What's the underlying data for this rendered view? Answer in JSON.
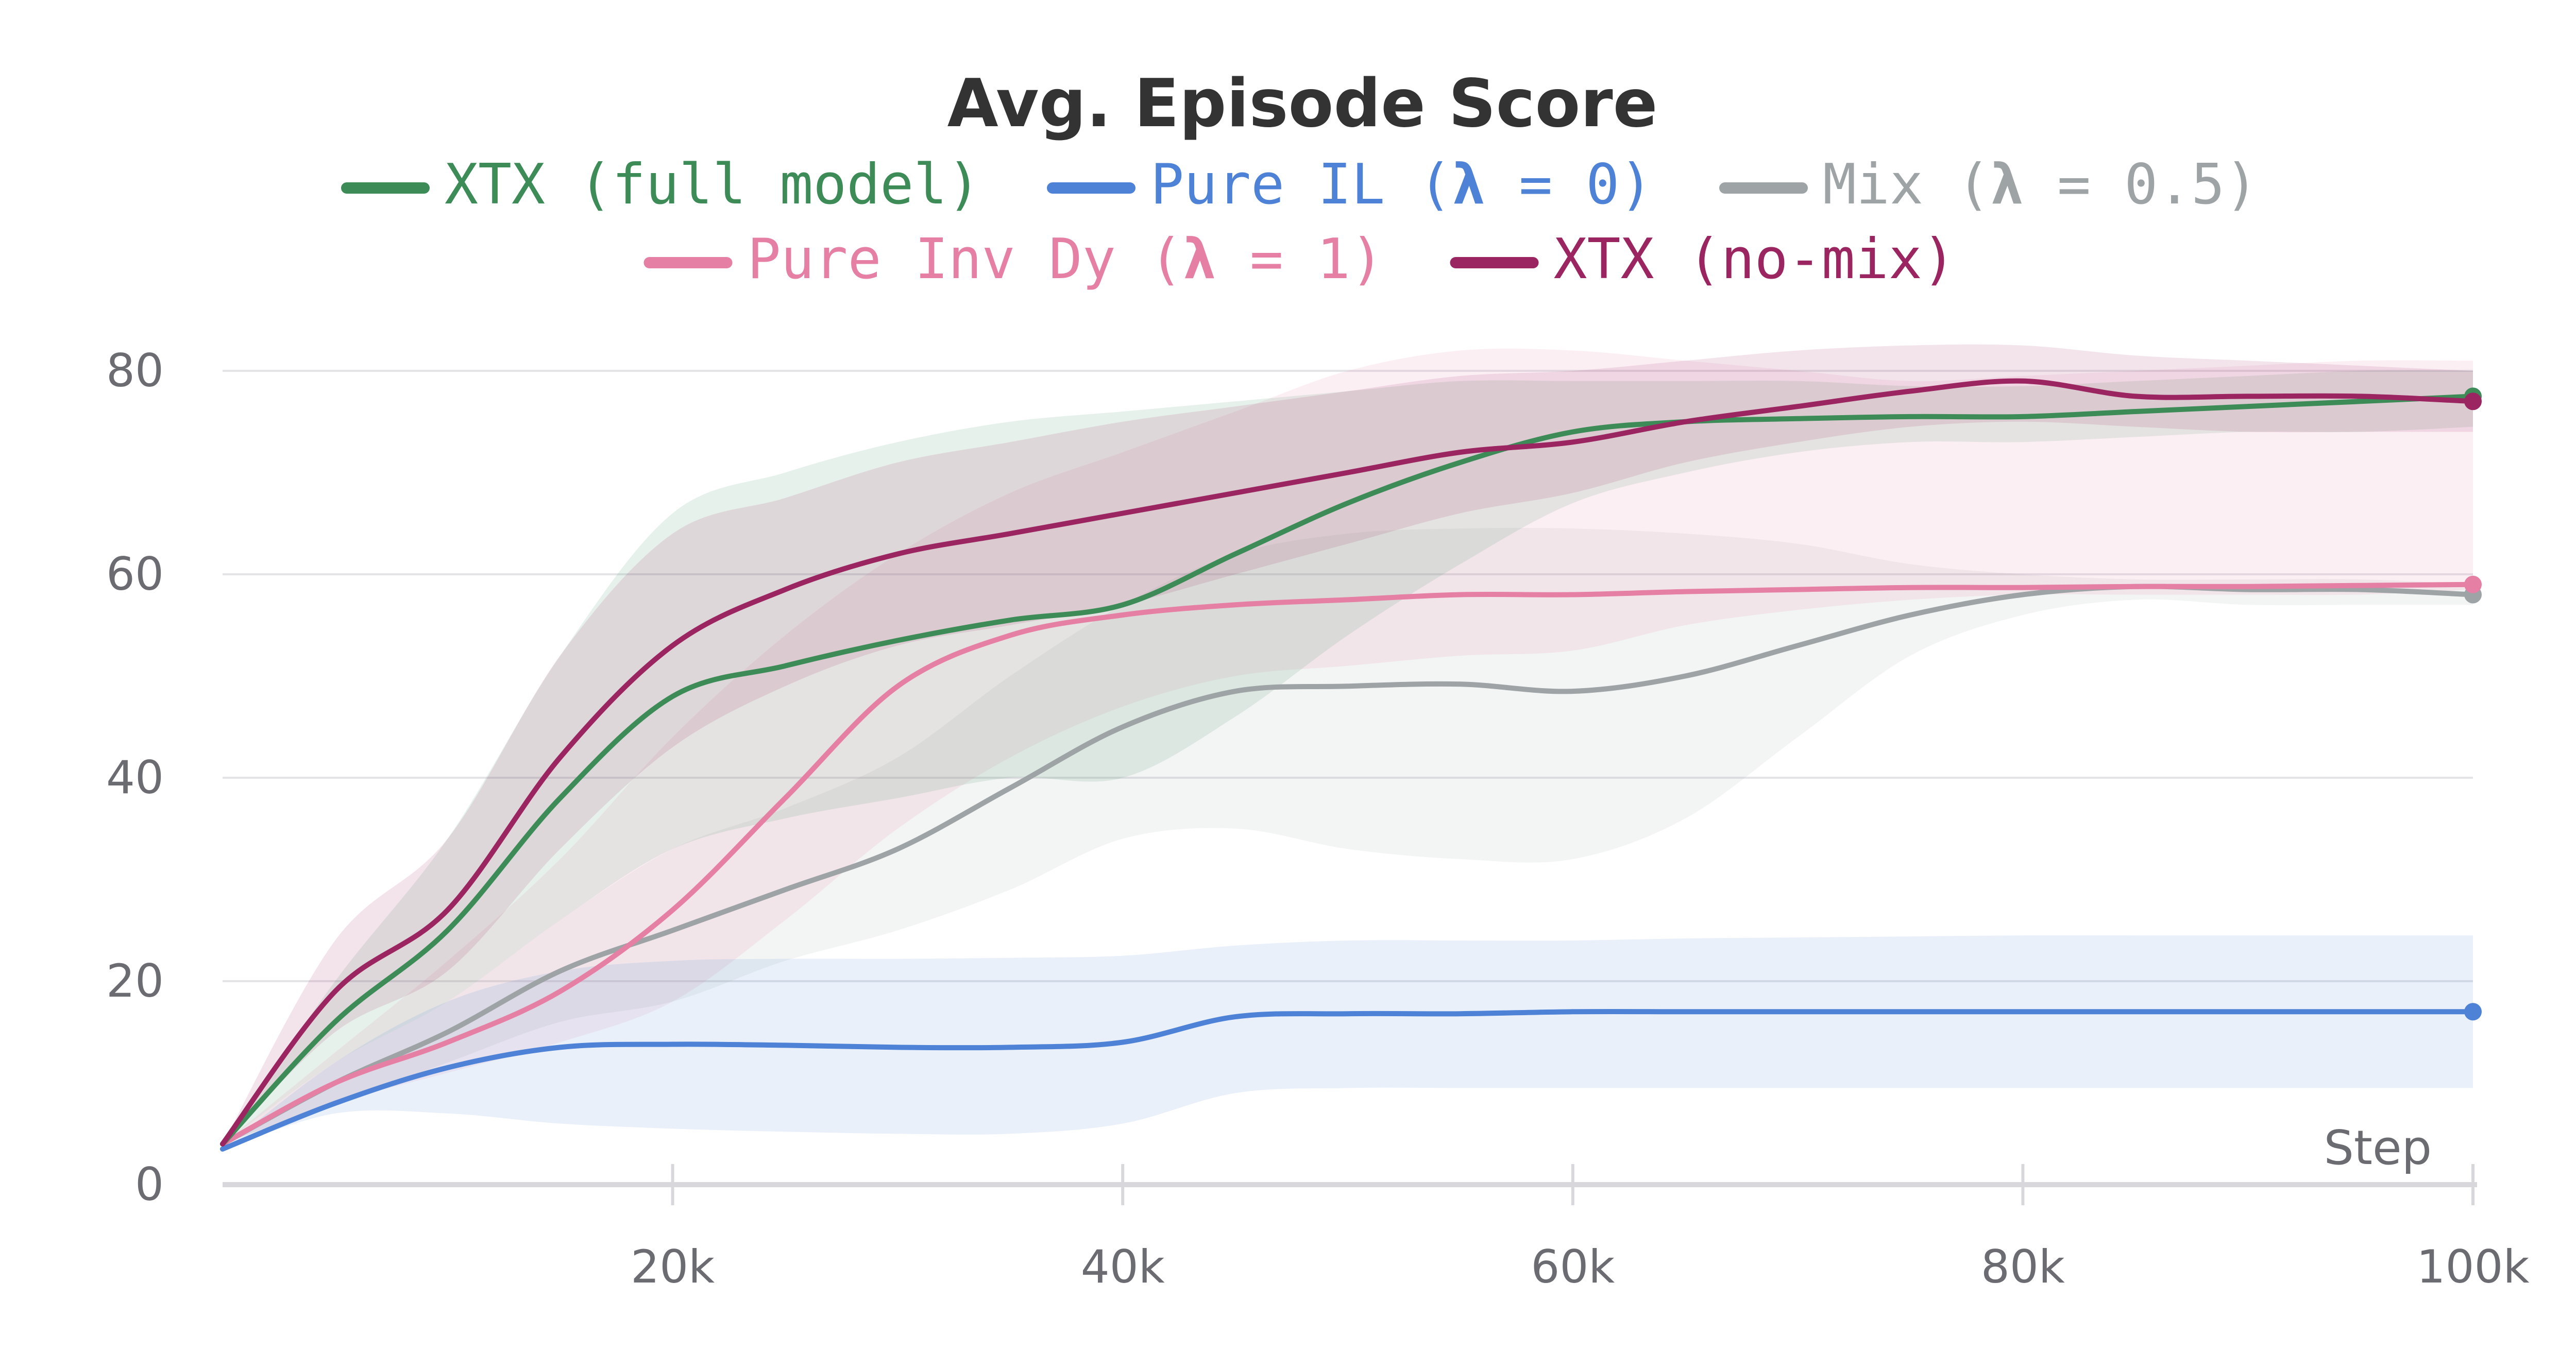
{
  "chart_data": {
    "type": "line",
    "title": "Avg. Episode Score",
    "xlabel": "Step",
    "ylabel": "",
    "xlim": [
      0,
      100000
    ],
    "ylim": [
      0,
      80
    ],
    "x_ticks": [
      20000,
      40000,
      60000,
      80000,
      100000
    ],
    "x_tick_labels": [
      "20k",
      "40k",
      "60k",
      "80k",
      "100k"
    ],
    "y_ticks": [
      0,
      20,
      40,
      60,
      80
    ],
    "y_tick_labels": [
      "0",
      "20",
      "40",
      "60",
      "80"
    ],
    "legend_position": "top",
    "series": [
      {
        "name": "Mix",
        "label": "Mix (λ = 0.5)",
        "label_parts": [
          "Mix (",
          "λ",
          " = 0.5)"
        ],
        "color": "#9ea3a6",
        "x": [
          0,
          5000,
          10000,
          15000,
          20000,
          25000,
          30000,
          35000,
          40000,
          45000,
          50000,
          55000,
          60000,
          65000,
          70000,
          75000,
          80000,
          85000,
          90000,
          95000,
          100000
        ],
        "y": [
          4,
          10,
          15,
          21,
          25,
          29,
          33,
          39,
          45,
          48.5,
          49,
          49.2,
          48.5,
          50,
          53,
          56,
          58,
          58.8,
          58.5,
          58.5,
          58
        ],
        "lower": [
          4,
          8,
          12,
          16,
          18,
          22,
          25,
          29,
          34,
          35,
          33,
          32,
          32,
          36,
          44,
          52,
          56,
          57.5,
          57,
          57,
          57
        ],
        "upper": [
          4,
          12,
          18,
          26,
          33,
          37,
          42,
          50,
          57,
          62,
          64,
          64.5,
          64.5,
          64,
          63,
          61,
          60,
          59.5,
          59.5,
          59.5,
          59
        ]
      },
      {
        "name": "Pure Inv Dy",
        "label": "Pure Inv Dy (λ = 1)",
        "label_parts": [
          "Pure Inv Dy (",
          "λ",
          " = 1)"
        ],
        "color": "#e57fa3",
        "x": [
          0,
          5000,
          10000,
          15000,
          20000,
          25000,
          30000,
          35000,
          40000,
          45000,
          50000,
          55000,
          60000,
          65000,
          70000,
          75000,
          80000,
          85000,
          90000,
          95000,
          100000
        ],
        "y": [
          4,
          10,
          14,
          19,
          27,
          38,
          49,
          54,
          56,
          57,
          57.5,
          58,
          58,
          58.3,
          58.5,
          58.7,
          58.7,
          58.8,
          58.8,
          58.9,
          59
        ],
        "lower": [
          4,
          8,
          11,
          14,
          18,
          26,
          35,
          42,
          47,
          50,
          51,
          52,
          52.5,
          55,
          56.5,
          57.5,
          58,
          58,
          58,
          58,
          58.5
        ],
        "upper": [
          4,
          13,
          22,
          32,
          44,
          54,
          62,
          68,
          72,
          76,
          80,
          82,
          82,
          81,
          80,
          79,
          79.5,
          80,
          80.5,
          81,
          81
        ]
      },
      {
        "name": "XTX (full model)",
        "label": "XTX (full model)",
        "label_parts": [
          "XTX (full model)"
        ],
        "color": "#3d8c58",
        "x": [
          0,
          5000,
          10000,
          15000,
          20000,
          25000,
          30000,
          35000,
          40000,
          45000,
          50000,
          55000,
          60000,
          65000,
          70000,
          75000,
          80000,
          85000,
          90000,
          95000,
          100000
        ],
        "y": [
          4,
          16,
          25,
          38,
          48,
          51,
          53.5,
          55.5,
          57,
          62,
          67,
          71,
          74,
          75,
          75.3,
          75.5,
          75.5,
          76,
          76.5,
          77,
          77.5
        ],
        "lower": [
          4,
          12,
          18,
          26,
          33,
          36,
          38,
          40,
          40,
          46,
          54,
          61,
          67,
          70,
          72,
          73,
          73,
          73.5,
          74,
          74,
          74.5
        ],
        "upper": [
          4,
          20,
          34,
          52,
          66,
          70,
          73,
          75,
          76,
          77,
          78,
          79,
          79,
          79,
          79,
          78.5,
          78.5,
          79,
          79.5,
          80,
          80
        ]
      },
      {
        "name": "Pure IL",
        "label": "Pure IL (λ = 0)",
        "label_parts": [
          "Pure IL (",
          "λ",
          " = 0)"
        ],
        "color": "#4d82d6",
        "x": [
          0,
          5000,
          10000,
          15000,
          20000,
          25000,
          30000,
          35000,
          40000,
          45000,
          50000,
          55000,
          60000,
          65000,
          70000,
          75000,
          80000,
          85000,
          90000,
          95000,
          100000
        ],
        "y": [
          3.5,
          8,
          11.5,
          13.5,
          13.8,
          13.7,
          13.5,
          13.5,
          14,
          16.5,
          16.8,
          16.8,
          17,
          17,
          17,
          17,
          17,
          17,
          17,
          17,
          17
        ],
        "lower": [
          3.5,
          7,
          7,
          6,
          5.5,
          5.2,
          5,
          5,
          6,
          9,
          9.5,
          9.5,
          9.5,
          9.5,
          9.5,
          9.5,
          9.5,
          9.5,
          9.5,
          9.5,
          9.5
        ],
        "upper": [
          3.5,
          12,
          18,
          21,
          22,
          22.2,
          22.2,
          22.3,
          22.5,
          23.5,
          24,
          24,
          24,
          24.2,
          24.3,
          24.4,
          24.5,
          24.5,
          24.5,
          24.5,
          24.5
        ]
      },
      {
        "name": "XTX (no-mix)",
        "label": "XTX (no-mix)",
        "label_parts": [
          "XTX (no-mix)"
        ],
        "color": "#9b2560",
        "x": [
          0,
          5000,
          10000,
          15000,
          20000,
          25000,
          30000,
          35000,
          40000,
          45000,
          50000,
          55000,
          60000,
          65000,
          70000,
          75000,
          80000,
          85000,
          90000,
          95000,
          100000
        ],
        "y": [
          4,
          19,
          27,
          42,
          53,
          58.5,
          62,
          64,
          66,
          68,
          70,
          72,
          73,
          75,
          76.5,
          78,
          79,
          77.5,
          77.5,
          77.5,
          77
        ],
        "lower": [
          4,
          15,
          21,
          33,
          43,
          49,
          53,
          55,
          57,
          60,
          63,
          66,
          68,
          71,
          73,
          74.5,
          75,
          74.5,
          74,
          74,
          74
        ],
        "upper": [
          4,
          24,
          34,
          52,
          64,
          67.5,
          71,
          73,
          75,
          76.5,
          78,
          79.5,
          80,
          81,
          82,
          82.5,
          82.5,
          81.5,
          81,
          80.5,
          80
        ]
      }
    ],
    "legend_rows": [
      [
        "XTX (full model)",
        "Pure IL",
        "Mix"
      ],
      [
        "Pure Inv Dy",
        "XTX (no-mix)"
      ]
    ]
  }
}
